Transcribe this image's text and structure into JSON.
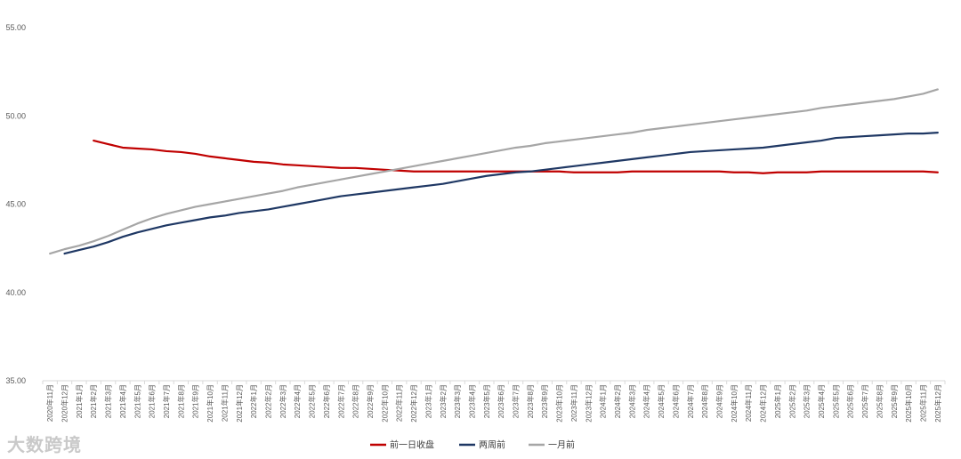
{
  "chart_data": {
    "type": "line",
    "title": "",
    "xlabel": "",
    "ylabel": "",
    "ylim": [
      35,
      55
    ],
    "yticks": [
      "35.00",
      "40.00",
      "45.00",
      "50.00",
      "55.00"
    ],
    "grid": false,
    "legend_position": "bottom-center",
    "x": [
      "2020年11月",
      "2020年12月",
      "2021年1月",
      "2021年2月",
      "2021年3月",
      "2021年4月",
      "2021年5月",
      "2021年6月",
      "2021年7月",
      "2021年8月",
      "2021年9月",
      "2021年10月",
      "2021年11月",
      "2021年12月",
      "2022年1月",
      "2022年2月",
      "2022年3月",
      "2022年4月",
      "2022年5月",
      "2022年6月",
      "2022年7月",
      "2022年8月",
      "2022年9月",
      "2022年10月",
      "2022年11月",
      "2022年12月",
      "2023年1月",
      "2023年2月",
      "2023年3月",
      "2023年4月",
      "2023年5月",
      "2023年6月",
      "2023年7月",
      "2023年8月",
      "2023年9月",
      "2023年10月",
      "2023年11月",
      "2023年12月",
      "2024年1月",
      "2024年2月",
      "2024年3月",
      "2024年4月",
      "2024年5月",
      "2024年6月",
      "2024年7月",
      "2024年8月",
      "2024年9月",
      "2024年10月",
      "2024年11月",
      "2024年12月",
      "2025年1月",
      "2025年2月",
      "2025年3月",
      "2025年4月",
      "2025年5月",
      "2025年6月",
      "2025年7月",
      "2025年8月",
      "2025年9月",
      "2025年10月",
      "2025年11月",
      "2025年12月"
    ],
    "series": [
      {
        "name": "前一日收盘",
        "color": "#c00000",
        "values": [
          null,
          null,
          null,
          48.6,
          48.4,
          48.2,
          48.15,
          48.1,
          48.0,
          47.95,
          47.85,
          47.7,
          47.6,
          47.5,
          47.4,
          47.35,
          47.25,
          47.2,
          47.15,
          47.1,
          47.05,
          47.05,
          47.0,
          46.95,
          46.9,
          46.85,
          46.85,
          46.85,
          46.85,
          46.85,
          46.85,
          46.85,
          46.85,
          46.85,
          46.85,
          46.85,
          46.8,
          46.8,
          46.8,
          46.8,
          46.85,
          46.85,
          46.85,
          46.85,
          46.85,
          46.85,
          46.85,
          46.8,
          46.8,
          46.75,
          46.8,
          46.8,
          46.8,
          46.85,
          46.85,
          46.85,
          46.85,
          46.85,
          46.85,
          46.85,
          46.85,
          46.8
        ]
      },
      {
        "name": "两周前",
        "color": "#1f3864",
        "values": [
          null,
          42.2,
          42.4,
          42.6,
          42.85,
          43.15,
          43.4,
          43.6,
          43.8,
          43.95,
          44.1,
          44.25,
          44.35,
          44.5,
          44.6,
          44.7,
          44.85,
          45.0,
          45.15,
          45.3,
          45.45,
          45.55,
          45.65,
          45.75,
          45.85,
          45.95,
          46.05,
          46.15,
          46.3,
          46.45,
          46.6,
          46.7,
          46.8,
          46.85,
          46.95,
          47.05,
          47.15,
          47.25,
          47.35,
          47.45,
          47.55,
          47.65,
          47.75,
          47.85,
          47.95,
          48.0,
          48.05,
          48.1,
          48.15,
          48.2,
          48.3,
          48.4,
          48.5,
          48.6,
          48.75,
          48.8,
          48.85,
          48.9,
          48.95,
          49.0,
          49.0,
          49.05
        ]
      },
      {
        "name": "一月前",
        "color": "#a6a6a6",
        "values": [
          42.2,
          42.45,
          42.65,
          42.9,
          43.2,
          43.55,
          43.9,
          44.2,
          44.45,
          44.65,
          44.85,
          45.0,
          45.15,
          45.3,
          45.45,
          45.6,
          45.75,
          45.95,
          46.1,
          46.25,
          46.4,
          46.55,
          46.7,
          46.85,
          47.0,
          47.15,
          47.3,
          47.45,
          47.6,
          47.75,
          47.9,
          48.05,
          48.2,
          48.3,
          48.45,
          48.55,
          48.65,
          48.75,
          48.85,
          48.95,
          49.05,
          49.2,
          49.3,
          49.4,
          49.5,
          49.6,
          49.7,
          49.8,
          49.9,
          50.0,
          50.1,
          50.2,
          50.3,
          50.45,
          50.55,
          50.65,
          50.75,
          50.85,
          50.95,
          51.1,
          51.25,
          51.5
        ]
      }
    ]
  },
  "watermark": "大数跨境"
}
